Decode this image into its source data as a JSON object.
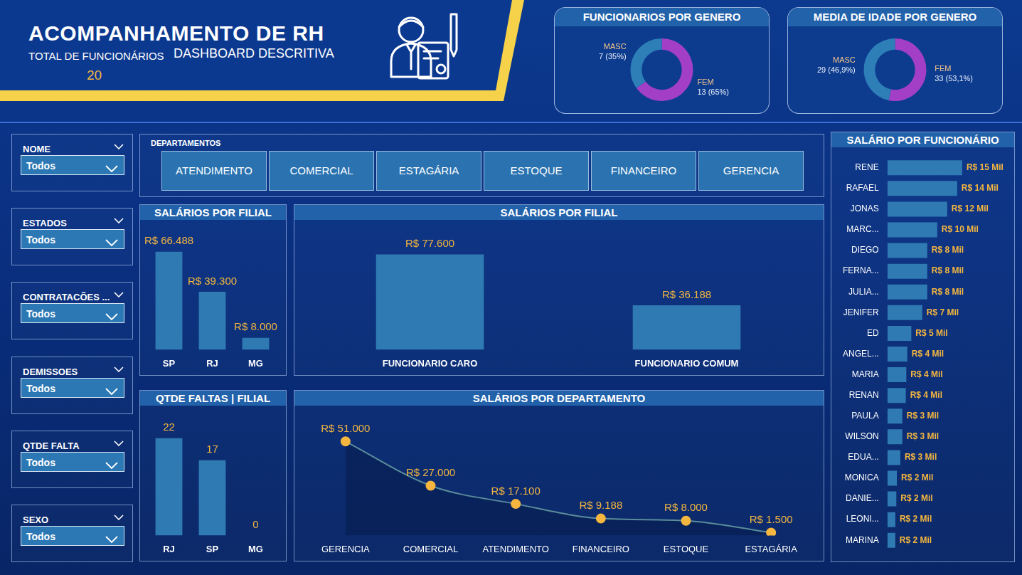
{
  "header": {
    "title": "ACOMPANHAMENTO DE RH",
    "subtitle": "DASHBOARD DESCRITIVA",
    "total_label": "TOTAL DE FUNCIONÁRIOS",
    "total": 20
  },
  "filters": [
    {
      "label": "NOME",
      "value": "Todos"
    },
    {
      "label": "ESTADOS",
      "value": "Todos"
    },
    {
      "label": "CONTRATACÕES ...",
      "value": "Todos"
    },
    {
      "label": "DEMISSOES",
      "value": "Todos"
    },
    {
      "label": "QTDE FALTA",
      "value": "Todos"
    },
    {
      "label": "SEXO",
      "value": "Todos"
    }
  ],
  "departments": {
    "label": "DEPARTAMENTOS",
    "buttons": [
      "ATENDIMENTO",
      "COMERCIAL",
      "ESTAGÁRIA",
      "ESTOQUE",
      "FINANCEIRO",
      "GERENCIA"
    ]
  },
  "chart_data": [
    {
      "type": "doughnut",
      "title": "FUNCIONARIOS POR GENERO",
      "categories": [
        "FEM",
        "MASC"
      ],
      "values": [
        13,
        7
      ],
      "value_labels": [
        "13 (65%)",
        "7 (35%)"
      ],
      "colors": [
        "#a23fc6",
        "#2e7fb8"
      ],
      "data_labels": true
    },
    {
      "type": "doughnut",
      "title": "MEDIA DE IDADE POR GENERO",
      "categories": [
        "FEM",
        "MASC"
      ],
      "values": [
        33,
        29
      ],
      "value_labels": [
        "33 (53,1%)",
        "29 (46,9%)"
      ],
      "colors": [
        "#a23fc6",
        "#2e7fb8"
      ],
      "data_labels": true
    },
    {
      "type": "bar",
      "title": "SALÁRIO POR FUNCIONÁRIO",
      "orientation": "horizontal",
      "categories": [
        "RENE",
        "RAFAEL",
        "JONAS",
        "MARC...",
        "DIEGO",
        "FERNA...",
        "JULIA...",
        "JENIFER",
        "ED",
        "ANGEL...",
        "MARIA",
        "RENAN",
        "PAULA",
        "WILSON",
        "EDUA...",
        "MONICA",
        "DANIE...",
        "LEONI...",
        "MARINA"
      ],
      "values": [
        15000,
        14000,
        12000,
        10000,
        8000,
        8000,
        8000,
        7000,
        4800,
        4000,
        3800,
        3700,
        3000,
        3000,
        2600,
        1900,
        1800,
        1600,
        1588
      ],
      "value_labels": [
        "R$ 15 Mil",
        "R$ 14 Mil",
        "R$ 12 Mil",
        "R$ 10 Mil",
        "R$ 8 Mil",
        "R$ 8 Mil",
        "R$ 8 Mil",
        "R$ 7 Mil",
        "R$ 5 Mil",
        "R$ 4 Mil",
        "R$ 4 Mil",
        "R$ 4 Mil",
        "R$ 3 Mil",
        "R$ 3 Mil",
        "R$ 3 Mil",
        "R$ 2 Mil",
        "R$ 2 Mil",
        "R$ 2 Mil",
        "R$ 2 Mil"
      ],
      "color": "#2f7ab3",
      "xlim": [
        0,
        24000
      ],
      "grid": false,
      "tick_labels": "y",
      "data_labels": true
    },
    {
      "type": "bar",
      "title": "SALÁRIOS POR FILIAL",
      "categories": [
        "SP",
        "RJ",
        "MG"
      ],
      "values": [
        66488,
        39300,
        8000
      ],
      "value_labels": [
        "R$ 66.488",
        "R$ 39.300",
        "R$ 8.000"
      ],
      "color": "#2f7ab3",
      "ylim": [
        0,
        75000
      ],
      "grid": false,
      "tick_labels": "x",
      "data_labels": true
    },
    {
      "type": "bar",
      "title": "SALÁRIOS POR FILIAL",
      "categories": [
        "FUNCIONARIO CARO",
        "FUNCIONARIO COMUM"
      ],
      "values": [
        77600,
        36188
      ],
      "value_labels": [
        "R$ 77.600",
        "R$ 36.188"
      ],
      "color": "#2f7ab3",
      "ylim": [
        0,
        90000
      ],
      "grid": false,
      "tick_labels": "x",
      "data_labels": true
    },
    {
      "type": "bar",
      "title": "QTDE FALTAS | FILIAL",
      "categories": [
        "RJ",
        "SP",
        "MG"
      ],
      "values": [
        22,
        17,
        0
      ],
      "color": "#2f7ab3",
      "ylim": [
        0,
        25
      ],
      "grid": false,
      "tick_labels": "x",
      "data_labels": true
    },
    {
      "type": "area",
      "title": "SALÁRIOS POR DEPARTAMENTO",
      "categories": [
        "GERENCIA",
        "COMERCIAL",
        "ATENDIMENTO",
        "FINANCEIRO",
        "ESTOQUE",
        "ESTAGÁRIA"
      ],
      "values": [
        51000,
        27000,
        17100,
        9188,
        8000,
        1500
      ],
      "value_labels": [
        "R$ 51.000",
        "R$ 27.000",
        "R$ 17.100",
        "R$ 9.188",
        "R$ 8.000",
        "R$ 1.500"
      ],
      "color": "#5a8c9a",
      "marker": "circle",
      "line_style": "solid",
      "ylim": [
        0,
        60000
      ],
      "grid": false,
      "tick_labels": "x",
      "data_labels": true
    }
  ]
}
